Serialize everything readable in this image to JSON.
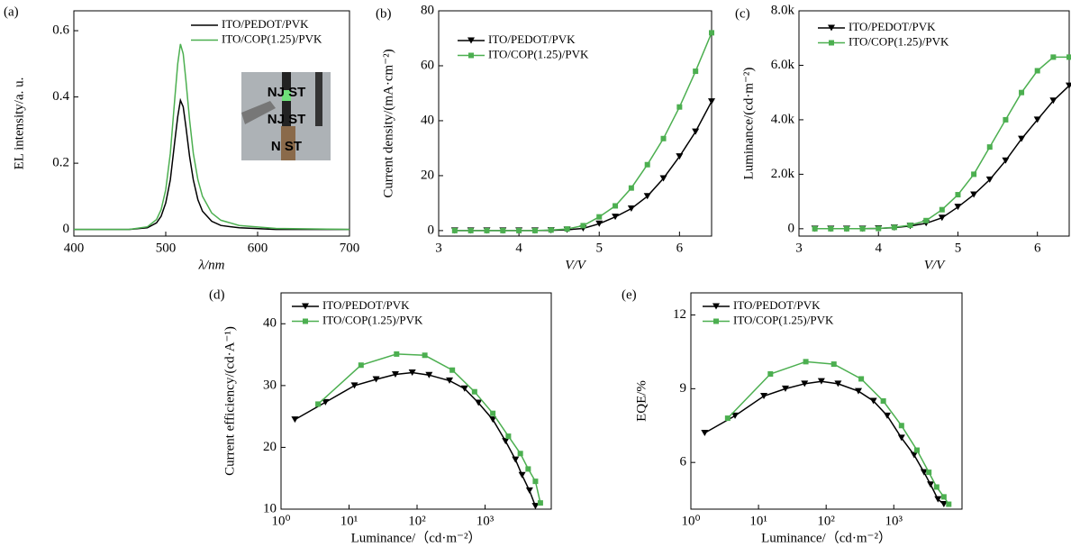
{
  "chart_data": [
    {
      "type": "line",
      "panel": "(a)",
      "x_label": "λ/nm",
      "y_label": "EL intensity/a. u.",
      "x": [
        400,
        460,
        480,
        490,
        495,
        500,
        505,
        510,
        513,
        516,
        519,
        522,
        526,
        530,
        535,
        540,
        550,
        560,
        580,
        620,
        700
      ],
      "series": [
        {
          "name": "ITO/PEDOT/PVK",
          "color": "#000000",
          "values": [
            0,
            0,
            0.005,
            0.02,
            0.04,
            0.08,
            0.15,
            0.27,
            0.34,
            0.39,
            0.37,
            0.31,
            0.22,
            0.15,
            0.09,
            0.055,
            0.025,
            0.012,
            0.005,
            0,
            0
          ]
        },
        {
          "name": "ITO/COP(1.25)/PVK",
          "color": "#4caf50",
          "values": [
            0,
            0,
            0.008,
            0.03,
            0.06,
            0.12,
            0.23,
            0.4,
            0.5,
            0.56,
            0.53,
            0.45,
            0.33,
            0.23,
            0.15,
            0.1,
            0.05,
            0.028,
            0.012,
            0.003,
            0
          ]
        }
      ],
      "xlim": [
        400,
        700
      ],
      "xticks": [
        400,
        500,
        600,
        700
      ],
      "ylim": [
        -0.02,
        0.66
      ],
      "yticks": [
        0,
        0.2,
        0.4,
        0.6
      ],
      "inset_text": [
        "NJ ST",
        "NJ ST",
        "N ST"
      ]
    },
    {
      "type": "line",
      "panel": "(b)",
      "x_label": "V/V",
      "y_label": "Current density/(mA·cm⁻²)",
      "x": [
        3.2,
        3.4,
        3.6,
        3.8,
        4.0,
        4.2,
        4.4,
        4.6,
        4.8,
        5.0,
        5.2,
        5.4,
        5.6,
        5.8,
        6.0,
        6.2,
        6.4
      ],
      "series": [
        {
          "name": "ITO/PEDOT/PVK",
          "color": "#000000",
          "marker": "triangle-down",
          "values": [
            0,
            0,
            0,
            0,
            0,
            0,
            0.1,
            0.3,
            0.8,
            2.5,
            5,
            8,
            12.5,
            19,
            27,
            36,
            47
          ]
        },
        {
          "name": "ITO/COP(1.25)/PVK",
          "color": "#4caf50",
          "marker": "square",
          "values": [
            0,
            0,
            0,
            0,
            0,
            0,
            0.2,
            0.6,
            1.8,
            5,
            9,
            15.5,
            24,
            33.5,
            45,
            58,
            72
          ]
        }
      ],
      "xlim": [
        3,
        6.4
      ],
      "xticks": [
        3,
        4,
        5,
        6
      ],
      "ylim": [
        -2,
        80
      ],
      "yticks": [
        0,
        20,
        40,
        60,
        80
      ]
    },
    {
      "type": "line",
      "panel": "(c)",
      "x_label": "V/V",
      "y_label": "Luminance/(cd·m⁻²)",
      "x": [
        3.2,
        3.4,
        3.6,
        3.8,
        4.0,
        4.2,
        4.4,
        4.6,
        4.8,
        5.0,
        5.2,
        5.4,
        5.6,
        5.8,
        6.0,
        6.2,
        6.4
      ],
      "series": [
        {
          "name": "ITO/PEDOT/PVK",
          "color": "#000000",
          "marker": "triangle-down",
          "values": [
            0,
            0,
            0,
            0,
            10,
            40,
            100,
            200,
            400,
            800,
            1250,
            1800,
            2500,
            3300,
            4000,
            4700,
            5250
          ]
        },
        {
          "name": "ITO/COP(1.25)/PVK",
          "color": "#4caf50",
          "marker": "square",
          "values": [
            0,
            0,
            0,
            0,
            10,
            50,
            130,
            300,
            700,
            1250,
            2000,
            3000,
            4000,
            5000,
            5800,
            6300,
            6300
          ]
        }
      ],
      "xlim": [
        3,
        6.4
      ],
      "xticks": [
        3,
        4,
        5,
        6
      ],
      "ylim": [
        -270,
        8000
      ],
      "yticks": [
        0,
        {
          "value": 2000,
          "label": "2.0k"
        },
        {
          "value": 4000,
          "label": "4.0k"
        },
        {
          "value": 6000,
          "label": "6.0k"
        },
        {
          "value": 8000,
          "label": "8.0k"
        }
      ]
    },
    {
      "type": "line",
      "panel": "(d)",
      "x_label": "Luminance/（cd·m⁻²）",
      "y_label": "Current efficiency/(cd·A⁻¹)",
      "xscale": "log",
      "series": [
        {
          "name": "ITO/PEDOT/PVK",
          "color": "#000000",
          "marker": "triangle-down",
          "x": [
            1.6,
            4.5,
            12,
            25,
            48,
            85,
            150,
            300,
            500,
            800,
            1300,
            2000,
            2800,
            3500,
            4500,
            5500
          ],
          "values": [
            24.5,
            27.3,
            30,
            31,
            31.8,
            32.1,
            31.7,
            30.8,
            29.5,
            27.2,
            24.5,
            21,
            18,
            15.5,
            13,
            10.5
          ]
        },
        {
          "name": "ITO/COP(1.25)/PVK",
          "color": "#4caf50",
          "marker": "square",
          "x": [
            3.5,
            15,
            50,
            130,
            330,
            700,
            1300,
            2200,
            3300,
            4300,
            5500,
            6500
          ],
          "values": [
            27,
            33.3,
            35.1,
            34.9,
            32.5,
            29,
            25.5,
            21.8,
            19,
            16.5,
            14.5,
            11
          ]
        }
      ],
      "xlim": [
        1,
        9400
      ],
      "xticks": [
        {
          "value": 1,
          "label": "10⁰"
        },
        {
          "value": 10,
          "label": "10¹"
        },
        {
          "value": 100,
          "label": "10²"
        },
        {
          "value": 1000,
          "label": "10³"
        }
      ],
      "ylim": [
        10,
        45
      ],
      "yticks": [
        10,
        20,
        30,
        40
      ]
    },
    {
      "type": "line",
      "panel": "(e)",
      "x_label": "Luminance/（cd·m⁻²）",
      "y_label": "EQE/%",
      "xscale": "log",
      "series": [
        {
          "name": "ITO/PEDOT/PVK",
          "color": "#000000",
          "marker": "triangle-down",
          "x": [
            1.6,
            4.5,
            12,
            25,
            48,
            85,
            150,
            300,
            500,
            800,
            1300,
            2000,
            2800,
            3500,
            4500,
            5500
          ],
          "values": [
            7.2,
            7.9,
            8.7,
            9.0,
            9.2,
            9.3,
            9.2,
            8.9,
            8.5,
            7.9,
            7.0,
            6.3,
            5.6,
            5.1,
            4.5,
            4.3
          ]
        },
        {
          "name": "ITO/COP(1.25)/PVK",
          "color": "#4caf50",
          "marker": "square",
          "x": [
            3.5,
            15,
            50,
            130,
            330,
            700,
            1300,
            2200,
            3300,
            4300,
            5500,
            6500
          ],
          "values": [
            7.8,
            9.6,
            10.1,
            10.0,
            9.4,
            8.5,
            7.5,
            6.5,
            5.6,
            5.0,
            4.6,
            4.3
          ]
        }
      ],
      "xlim": [
        1,
        10200
      ],
      "xticks": [
        {
          "value": 1,
          "label": "10⁰"
        },
        {
          "value": 10,
          "label": "10¹"
        },
        {
          "value": 100,
          "label": "10²"
        },
        {
          "value": 1000,
          "label": "10³"
        }
      ],
      "ylim": [
        4.1,
        12.9
      ],
      "yticks": [
        6,
        9,
        12
      ]
    }
  ]
}
